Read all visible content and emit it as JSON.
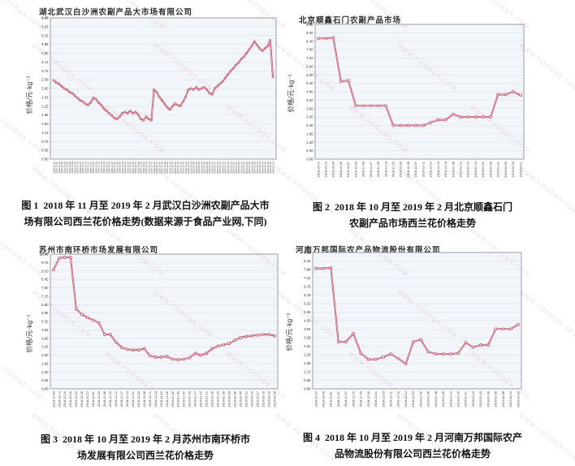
{
  "page": {
    "background": "#ffffff",
    "watermark_text": "WWW.FOODQS.COM"
  },
  "colors": {
    "line": "#bf4a5f",
    "line_inner": "#eeb9c2",
    "marker_fill": "#f8e8ea",
    "plot_bg": "#f2f6fa",
    "grid": "#d6dfe9",
    "axis": "#8f969e",
    "tick_text": "#333333",
    "watermark": "#d68c98"
  },
  "figures": [
    {
      "title": "湖北武汉白沙洲农副产品大市场有限公司",
      "y_axis_label": "价格/元·kg⁻¹",
      "caption_lines": [
        "图 1  2018 年 11 月至 2019 年 2 月武汉白沙洲农副产品大市",
        "场有限公司西兰花价格走势(数据来源于食品产业网,下同)"
      ]
    },
    {
      "title": "北京顺鑫石门农副产品市场",
      "y_axis_label": "价格/元·kg⁻¹",
      "caption_lines": [
        "图 2  2018 年 10 月至 2019 年 2 月北京顺鑫石门",
        "农副产品市场西兰花价格走势"
      ]
    },
    {
      "title": "苏州市南环桥市场发展有限公司",
      "y_axis_label": "价格/元·kg⁻¹",
      "caption_lines": [
        "图 3  2018 年 10 月至 2019 年 2 月苏州市南环桥市",
        "场发展有限公司西兰花价格走势"
      ]
    },
    {
      "title": "河南万邦国际农产品物流股份有限公司",
      "y_axis_label": "价格/元·kg⁻¹",
      "caption_lines": [
        "图 4  2018 年 10 月至 2019 年 2 月河南万邦国际农产",
        "品物流股份有限公司西兰花价格走势"
      ]
    }
  ],
  "chart_data": [
    {
      "type": "line",
      "title": "湖北武汉白沙洲农副产品大市场有限公司",
      "xlabel": "",
      "ylabel": "价格/元·kg⁻¹",
      "ylim": [
        0,
        6
      ],
      "grid": true,
      "legend": false,
      "y_tick_labels": [
        "6.00",
        "5.63",
        "5.25",
        "4.88",
        "4.50",
        "4.13",
        "3.75",
        "3.38",
        "3.00",
        "2.63",
        "2.25",
        "1.88",
        "1.50",
        "1.13",
        "0.75",
        "0.38",
        "0.00"
      ],
      "x": [
        "2018-11-01",
        "2018-11-02",
        "2018-11-03",
        "2018-11-05",
        "2018-11-06",
        "2018-11-07",
        "2018-11-08",
        "2018-11-09",
        "2018-11-10",
        "2018-11-12",
        "2018-11-13",
        "2018-11-14",
        "2018-11-15",
        "2018-11-16",
        "2018-11-17",
        "2018-11-19",
        "2018-11-20",
        "2018-11-21",
        "2018-11-22",
        "2018-11-23",
        "2018-11-24",
        "2018-11-26",
        "2018-11-27",
        "2018-11-28",
        "2018-11-29",
        "2018-11-30",
        "2018-12-01",
        "2018-12-03",
        "2018-12-04",
        "2018-12-05",
        "2018-12-06",
        "2018-12-07",
        "2018-12-08",
        "2018-12-10",
        "2018-12-11",
        "2018-12-12",
        "2018-12-13",
        "2018-12-14",
        "2018-12-15",
        "2018-12-17",
        "2018-12-18",
        "2018-12-19",
        "2018-12-20",
        "2018-12-21",
        "2018-12-22",
        "2018-12-24",
        "2018-12-25",
        "2018-12-26",
        "2018-12-27",
        "2018-12-28",
        "2018-12-29",
        "2018-12-31",
        "2019-01-02",
        "2019-01-03",
        "2019-01-04",
        "2019-01-05",
        "2019-01-07",
        "2019-01-08",
        "2019-01-09",
        "2019-01-10",
        "2019-01-11",
        "2019-01-12",
        "2019-01-14",
        "2019-01-15",
        "2019-01-16",
        "2019-01-17",
        "2019-01-18",
        "2019-01-19",
        "2019-01-21",
        "2019-01-22",
        "2019-01-23",
        "2019-01-24",
        "2019-01-25",
        "2019-01-26",
        "2019-01-28",
        "2019-01-29",
        "2019-01-30",
        "2019-01-31",
        "2019-02-11",
        "2019-02-13",
        "2019-02-15",
        "2019-02-18",
        "2019-02-20",
        "2019-02-25"
      ],
      "values": [
        3.35,
        3.25,
        3.2,
        3.1,
        3.0,
        2.95,
        2.85,
        2.8,
        2.7,
        2.6,
        2.5,
        2.45,
        2.35,
        2.3,
        2.4,
        2.6,
        2.55,
        2.4,
        2.3,
        2.15,
        2.05,
        1.95,
        1.85,
        1.75,
        1.7,
        1.8,
        1.95,
        2.0,
        1.95,
        2.05,
        1.95,
        2.0,
        1.9,
        1.7,
        1.65,
        1.8,
        1.7,
        1.65,
        2.95,
        2.85,
        2.65,
        2.5,
        2.35,
        2.2,
        2.1,
        2.25,
        2.35,
        2.3,
        2.25,
        2.45,
        2.65,
        2.95,
        3.0,
        2.95,
        3.05,
        2.95,
        3.0,
        3.05,
        2.95,
        2.8,
        2.75,
        3.0,
        3.1,
        3.2,
        3.3,
        3.45,
        3.6,
        3.75,
        3.85,
        4.0,
        4.1,
        4.25,
        4.35,
        4.5,
        4.65,
        4.8,
        5.0,
        4.85,
        4.7,
        4.6,
        4.7,
        4.8,
        5.05,
        3.5
      ]
    },
    {
      "type": "line",
      "title": "北京顺鑫石门农副产品市场",
      "xlabel": "",
      "ylabel": "价格/元·kg⁻¹",
      "ylim": [
        0,
        9.6
      ],
      "grid": true,
      "legend": false,
      "y_tick_labels": [
        "9.60",
        "9.00",
        "8.40",
        "7.80",
        "7.20",
        "6.60",
        "6.00",
        "5.40",
        "4.80",
        "4.20",
        "3.60",
        "3.00",
        "2.40",
        "1.80",
        "1.20",
        "0.60",
        "0.00"
      ],
      "x": [
        "2018-10-12",
        "2018-10-16",
        "2018-10-20",
        "2018-10-25",
        "2018-10-27",
        "2018-10-29",
        "2018-11-03",
        "2018-11-07",
        "2018-11-09",
        "2018-11-16",
        "2018-11-22",
        "2018-12-03",
        "2018-12-05",
        "2018-12-07",
        "2018-12-11",
        "2018-12-13",
        "2018-12-16",
        "2018-12-18",
        "2019-01-06",
        "2019-01-12",
        "2019-01-15",
        "2019-01-19",
        "2019-01-21",
        "2019-01-26",
        "2019-01-31",
        "2019-02-03",
        "2019-02-20",
        "2019-02-21"
      ],
      "values": [
        8.6,
        8.6,
        8.65,
        5.55,
        5.6,
        3.8,
        3.8,
        3.8,
        3.8,
        3.8,
        2.4,
        2.4,
        2.4,
        2.4,
        2.4,
        2.6,
        2.8,
        2.8,
        3.2,
        3.0,
        3.0,
        3.0,
        3.0,
        3.0,
        4.6,
        4.6,
        4.8,
        4.55
      ]
    },
    {
      "type": "line",
      "title": "苏州市南环桥市场发展有限公司",
      "xlabel": "",
      "ylabel": "价格/元·kg⁻¹",
      "ylim": [
        0,
        10.4
      ],
      "grid": true,
      "legend": false,
      "y_tick_labels": [
        "10.40",
        "9.75",
        "9.10",
        "8.45",
        "7.80",
        "7.15",
        "6.50",
        "5.85",
        "5.20",
        "4.55",
        "3.90",
        "3.25",
        "2.60",
        "1.95",
        "1.30",
        "0.65",
        "0.00"
      ],
      "x": [
        "2018-10-09",
        "2018-10-13",
        "2018-10-16",
        "2018-10-19",
        "2018-10-24",
        "2018-10-26",
        "2018-10-27",
        "2018-10-31",
        "2018-11-03",
        "2018-11-06",
        "2018-11-10",
        "2018-11-12",
        "2018-11-17",
        "2018-11-24",
        "2018-12-01",
        "2018-12-03",
        "2018-12-08",
        "2018-12-11",
        "2018-12-13",
        "2018-12-24",
        "2018-12-28",
        "2019-01-02",
        "2019-01-05",
        "2019-01-07",
        "2019-01-09",
        "2019-01-14",
        "2019-01-19",
        "2019-01-21",
        "2019-01-26",
        "2019-01-29",
        "2019-01-30",
        "2019-02-03",
        "2019-02-06",
        "2019-02-09",
        "2019-02-12",
        "2019-02-15",
        "2019-02-17",
        "2019-02-19",
        "2019-02-20",
        "2019-02-25"
      ],
      "values": [
        9.2,
        10.1,
        10.15,
        10.15,
        6.15,
        5.75,
        5.5,
        5.3,
        5.1,
        4.2,
        4.2,
        3.6,
        3.2,
        3.05,
        3.0,
        3.0,
        3.1,
        2.55,
        2.45,
        2.45,
        2.5,
        2.3,
        2.25,
        2.3,
        2.4,
        2.75,
        2.6,
        2.75,
        3.1,
        3.3,
        3.4,
        3.5,
        3.75,
        3.95,
        4.05,
        4.1,
        4.15,
        4.2,
        4.2,
        4.1
      ]
    },
    {
      "type": "line",
      "title": "河南万邦国际农产品物流股份有限公司",
      "xlabel": "",
      "ylabel": "价格/元·kg⁻¹",
      "ylim": [
        0,
        9
      ],
      "grid": true,
      "legend": false,
      "y_tick_labels": [
        "9.00",
        "8.44",
        "7.88",
        "7.31",
        "6.75",
        "6.19",
        "5.63",
        "5.06",
        "4.50",
        "3.94",
        "3.38",
        "2.81",
        "2.25",
        "1.69",
        "1.13",
        "0.56",
        "0.00"
      ],
      "x": [
        "2018-10-24",
        "2018-10-28",
        "2018-10-31",
        "2018-11-01",
        "2018-11-07",
        "2018-11-15",
        "2018-11-20",
        "2018-11-26",
        "2018-12-01",
        "2018-12-03",
        "2018-12-11",
        "2018-12-12",
        "2018-12-13",
        "2018-12-24",
        "2019-01-02",
        "2019-01-06",
        "2019-01-08",
        "2019-01-09",
        "2019-01-14",
        "2019-01-20",
        "2019-01-21",
        "2019-01-24",
        "2019-01-29",
        "2019-01-30",
        "2019-02-06",
        "2019-02-08",
        "2019-02-10",
        "2019-02-20"
      ],
      "values": [
        7.95,
        7.95,
        8.0,
        3.1,
        3.1,
        3.65,
        2.35,
        1.95,
        1.95,
        2.1,
        2.3,
        2.0,
        1.65,
        3.1,
        3.25,
        2.45,
        2.3,
        2.3,
        2.3,
        2.35,
        3.05,
        2.75,
        2.9,
        2.9,
        3.95,
        3.95,
        3.95,
        4.25
      ]
    }
  ]
}
